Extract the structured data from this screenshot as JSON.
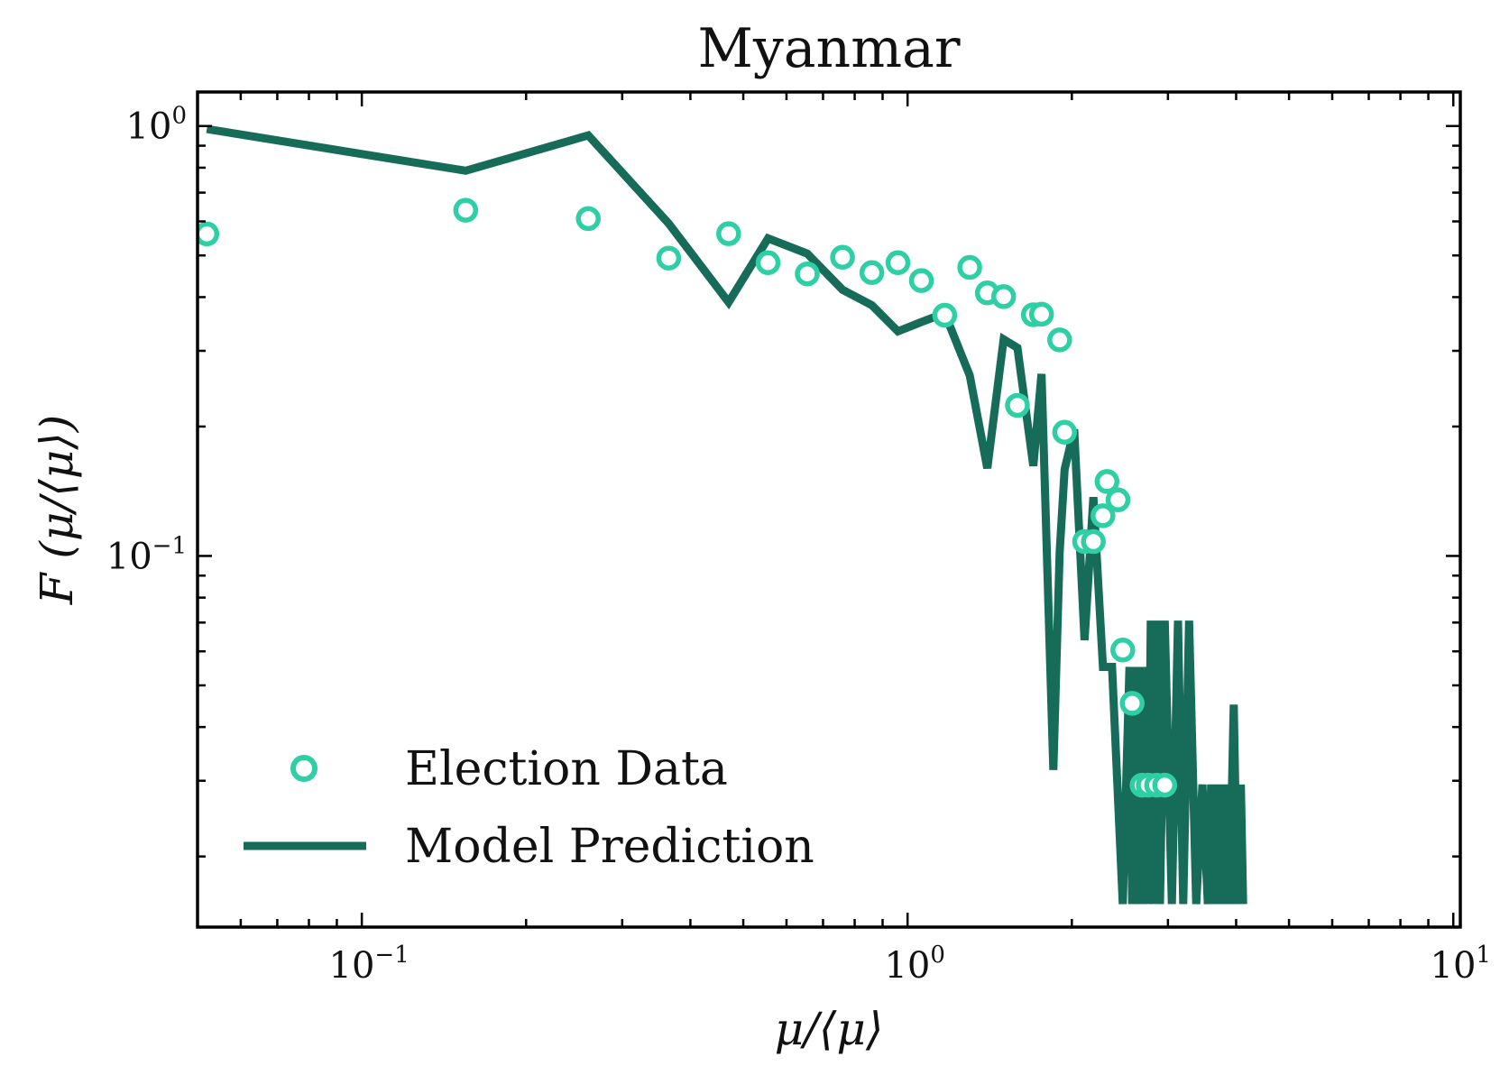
{
  "chart_data": {
    "type": "scatter",
    "title": "Myanmar",
    "xlabel": "μ/⟨μ⟩",
    "ylabel": "F (μ/⟨μ⟩)",
    "xscale": "log",
    "yscale": "log",
    "xlim": [
      0.05,
      10.3
    ],
    "ylim": [
      0.0137,
      1.2
    ],
    "x_ticks": [
      {
        "value": 0.1,
        "base": "10",
        "exp": "−1"
      },
      {
        "value": 1,
        "base": "10",
        "exp": "0"
      },
      {
        "value": 10,
        "base": "10",
        "exp": "1"
      }
    ],
    "y_ticks": [
      {
        "value": 1,
        "base": "10",
        "exp": "0"
      },
      {
        "value": 0.1,
        "base": "10",
        "exp": "−1"
      }
    ],
    "grid": false,
    "legend_position": "bottom-left",
    "colors": {
      "election_data": "#2ecfa4",
      "model_prediction": "#166b59",
      "axes": "#000000"
    },
    "series": [
      {
        "name": "Election Data",
        "kind": "markers",
        "x": [
          0.052,
          0.155,
          0.26,
          0.365,
          0.47,
          0.555,
          0.655,
          0.76,
          0.86,
          0.96,
          1.06,
          1.17,
          1.3,
          1.4,
          1.5,
          1.59,
          1.7,
          1.76,
          1.9,
          1.94,
          2.11,
          2.19,
          2.28,
          2.32,
          2.43,
          2.48,
          2.58,
          2.69,
          2.76,
          2.86,
          2.96
        ],
        "y": [
          0.561,
          0.637,
          0.609,
          0.493,
          0.562,
          0.481,
          0.453,
          0.495,
          0.456,
          0.481,
          0.437,
          0.363,
          0.469,
          0.409,
          0.401,
          0.224,
          0.364,
          0.365,
          0.318,
          0.194,
          0.108,
          0.108,
          0.124,
          0.149,
          0.135,
          0.0604,
          0.0454,
          0.0293,
          0.0293,
          0.0293,
          0.0293
        ]
      },
      {
        "name": "Model Prediction",
        "kind": "line",
        "x": [
          0.052,
          0.155,
          0.26,
          0.365,
          0.47,
          0.555,
          0.655,
          0.76,
          0.86,
          0.96,
          1.06,
          1.17,
          1.3,
          1.4,
          1.5,
          1.59,
          1.7,
          1.76,
          1.85,
          1.9,
          1.94,
          2.02,
          2.11,
          2.19,
          2.28,
          2.37,
          2.48,
          2.55,
          2.58,
          2.61,
          2.64,
          2.67,
          2.7,
          2.73,
          2.76,
          2.79,
          2.82,
          2.86,
          2.9,
          2.96,
          3.05,
          3.13,
          3.2,
          3.28,
          3.38,
          3.47,
          3.55,
          3.6,
          3.65,
          3.7,
          3.76,
          3.82,
          3.89,
          3.96,
          4.02,
          4.08,
          4.12
        ],
        "y": [
          0.984,
          0.787,
          0.951,
          0.593,
          0.389,
          0.548,
          0.505,
          0.416,
          0.383,
          0.333,
          0.35,
          0.367,
          0.263,
          0.16,
          0.319,
          0.305,
          0.162,
          0.265,
          0.0318,
          0.102,
          0.159,
          0.197,
          0.0637,
          0.137,
          0.0552,
          0.0552,
          0.0155,
          0.0552,
          0.0155,
          0.0552,
          0.0155,
          0.0552,
          0.0155,
          0.0552,
          0.0155,
          0.0707,
          0.0155,
          0.0707,
          0.0155,
          0.0707,
          0.0155,
          0.0707,
          0.0155,
          0.0707,
          0.0155,
          0.0294,
          0.0155,
          0.0294,
          0.0155,
          0.0294,
          0.0155,
          0.0294,
          0.0155,
          0.0451,
          0.0155,
          0.0294,
          0.0155
        ]
      }
    ]
  }
}
